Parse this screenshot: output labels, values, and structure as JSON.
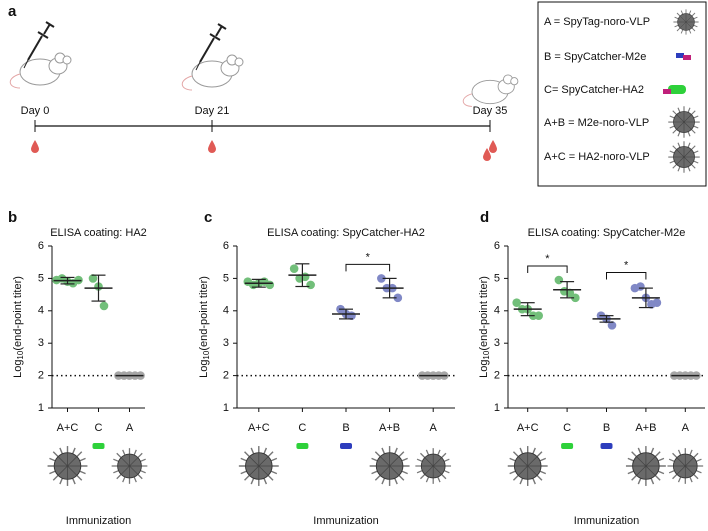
{
  "panel_labels": [
    "a",
    "b",
    "c",
    "d"
  ],
  "timeline": {
    "days": [
      "Day 0",
      "Day 21",
      "Day 35"
    ]
  },
  "legend": [
    "A = SpyTag-noro-VLP",
    "B = SpyCatcher-M2e",
    "C= SpyCatcher-HA2",
    "A+B = M2e-noro-VLP",
    "A+C = HA2-noro-VLP"
  ],
  "chart_data": [
    {
      "type": "dot",
      "title": "ELISA coating: HA2",
      "ylabel": [
        "Log",
        "10",
        "(end-point titer)"
      ],
      "xlabel": "Immunization",
      "categories": [
        "A+C",
        "C",
        "A"
      ],
      "colors": [
        "#72bf7a",
        "#72bf7a",
        "#a6a6a6"
      ],
      "groups": [
        {
          "points": [
            4.95,
            5.0,
            4.9,
            4.85,
            4.95
          ],
          "mean": 4.93,
          "sd": 0.1
        },
        {
          "points": [
            5.0,
            4.75,
            4.15
          ],
          "mean": 4.7,
          "sd": 0.4
        },
        {
          "points": [
            2,
            2,
            2,
            2,
            2
          ],
          "mean": 2,
          "sd": 0
        }
      ],
      "ylim": [
        1,
        6
      ],
      "yticks": [
        1,
        2,
        3,
        4,
        5,
        6
      ],
      "reference_line": 2,
      "significance": []
    },
    {
      "type": "dot",
      "title": "ELISA coating: SpyCatcher-HA2",
      "ylabel": [
        "Log",
        "10",
        "(end-point titer)"
      ],
      "xlabel": "Immunization",
      "categories": [
        "A+C",
        "C",
        "B",
        "A+B",
        "A"
      ],
      "colors": [
        "#72bf7a",
        "#72bf7a",
        "#8088c6",
        "#8088c6",
        "#a6a6a6"
      ],
      "groups": [
        {
          "points": [
            4.9,
            4.8,
            4.85,
            4.9,
            4.8
          ],
          "mean": 4.85,
          "sd": 0.12
        },
        {
          "points": [
            5.3,
            5.0,
            5.05,
            4.8
          ],
          "mean": 5.1,
          "sd": 0.35
        },
        {
          "points": [
            4.05,
            3.9,
            3.85
          ],
          "mean": 3.9,
          "sd": 0.15
        },
        {
          "points": [
            5.0,
            4.7,
            4.7,
            4.4
          ],
          "mean": 4.7,
          "sd": 0.3
        },
        {
          "points": [
            2,
            2,
            2,
            2,
            2
          ],
          "mean": 2,
          "sd": 0
        }
      ],
      "ylim": [
        1,
        6
      ],
      "yticks": [
        1,
        2,
        3,
        4,
        5,
        6
      ],
      "reference_line": 2,
      "significance": [
        {
          "between": [
            2,
            3
          ],
          "label": "*"
        }
      ]
    },
    {
      "type": "dot",
      "title": "ELISA coating: SpyCatcher-M2e",
      "ylabel": [
        "Log",
        "10",
        "(end-point titer)"
      ],
      "xlabel": "Immunization",
      "categories": [
        "A+C",
        "C",
        "B",
        "A+B",
        "A"
      ],
      "colors": [
        "#72bf7a",
        "#72bf7a",
        "#8088c6",
        "#8088c6",
        "#a6a6a6"
      ],
      "groups": [
        {
          "points": [
            4.25,
            4.05,
            4.05,
            3.85,
            3.85
          ],
          "mean": 4.05,
          "sd": 0.2
        },
        {
          "points": [
            4.95,
            4.6,
            4.55,
            4.4
          ],
          "mean": 4.65,
          "sd": 0.25
        },
        {
          "points": [
            3.85,
            3.75,
            3.55
          ],
          "mean": 3.75,
          "sd": 0.1
        },
        {
          "points": [
            4.7,
            4.75,
            4.4,
            4.2,
            4.25
          ],
          "mean": 4.4,
          "sd": 0.3
        },
        {
          "points": [
            2,
            2,
            2,
            2,
            2
          ],
          "mean": 2,
          "sd": 0
        }
      ],
      "ylim": [
        1,
        6
      ],
      "yticks": [
        1,
        2,
        3,
        4,
        5,
        6
      ],
      "reference_line": 2,
      "significance": [
        {
          "between": [
            0,
            1
          ],
          "label": "*"
        },
        {
          "between": [
            2,
            3
          ],
          "label": "*"
        }
      ]
    }
  ]
}
